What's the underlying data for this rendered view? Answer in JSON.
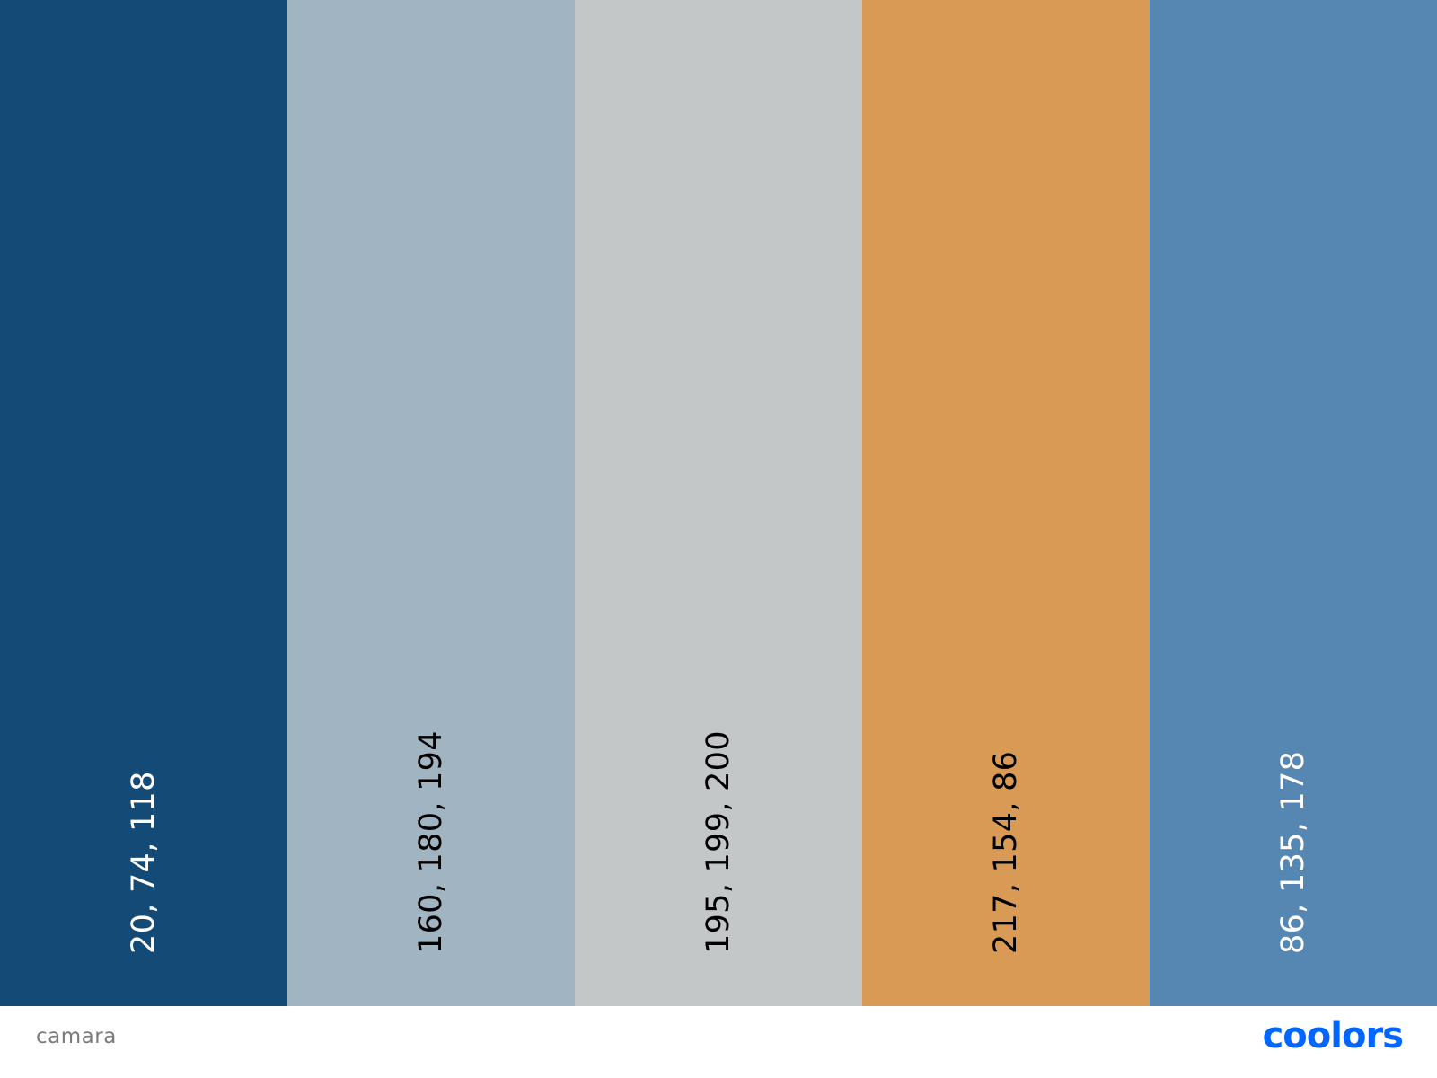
{
  "palette": {
    "name": "camara",
    "swatches": [
      {
        "rgb": "20, 74, 118",
        "hex": "#144A76",
        "text_color": "#ffffff"
      },
      {
        "rgb": "160, 180, 194",
        "hex": "#A0B4C2",
        "text_color": "#000000"
      },
      {
        "rgb": "195, 199, 200",
        "hex": "#C3C7C8",
        "text_color": "#000000"
      },
      {
        "rgb": "217, 154, 86",
        "hex": "#D99A56",
        "text_color": "#000000"
      },
      {
        "rgb": "86, 135, 178",
        "hex": "#5687B2",
        "text_color": "#ffffff"
      }
    ]
  },
  "footer": {
    "brand": "coolors",
    "brand_color": "#0066FF"
  }
}
